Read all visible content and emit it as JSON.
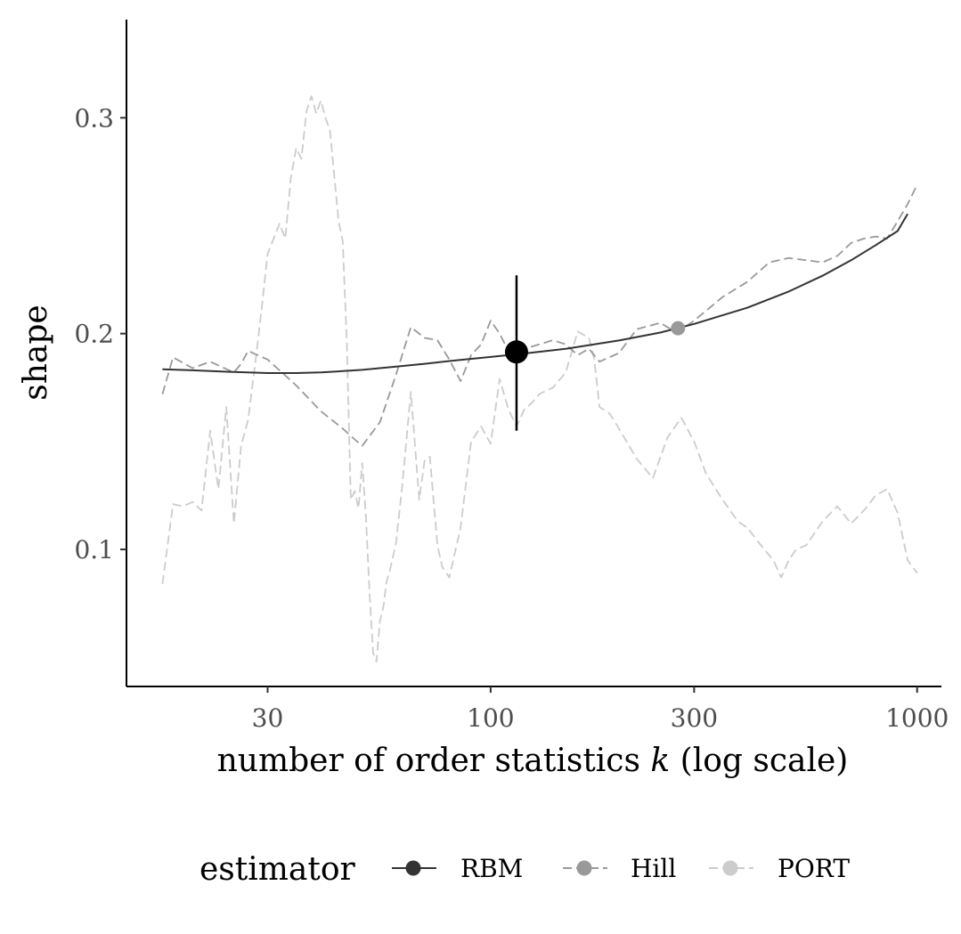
{
  "chart_data": {
    "type": "line",
    "xlabel_prefix": "number of order statistics",
    "xlabel_var": "k",
    "xlabel_suffix": "(log scale)",
    "ylabel": "shape",
    "x_scale": "log",
    "xlim": [
      14,
      1140
    ],
    "ylim": [
      0.0365,
      0.3455
    ],
    "x_ticks": [
      30,
      100,
      300,
      1000
    ],
    "x_tick_labels": [
      "30",
      "100",
      "300",
      "1000"
    ],
    "y_ticks": [
      0.1,
      0.2,
      0.3
    ],
    "y_tick_labels": [
      "0.1",
      "0.2",
      "0.3"
    ],
    "grid": false,
    "legend_position": "bottom",
    "legend_title": "estimator",
    "series": [
      {
        "name": "RBM",
        "color": "#333333",
        "linetype": "solid",
        "x": [
          17,
          20,
          25,
          30,
          35,
          40,
          50,
          60,
          70,
          80,
          100,
          120,
          150,
          200,
          250,
          300,
          400,
          500,
          600,
          700,
          800,
          900,
          950
        ],
        "y": [
          0.1835,
          0.183,
          0.1822,
          0.1817,
          0.1817,
          0.182,
          0.1832,
          0.1847,
          0.186,
          0.1873,
          0.1892,
          0.1908,
          0.193,
          0.1968,
          0.2005,
          0.2045,
          0.212,
          0.2195,
          0.2268,
          0.234,
          0.241,
          0.2475,
          0.2555
        ]
      },
      {
        "name": "Hill",
        "color": "#999999",
        "linetype": "dashed",
        "x": [
          17,
          18,
          20,
          22,
          25,
          26,
          27,
          30,
          35,
          40,
          45,
          48,
          50,
          55,
          60,
          65,
          70,
          75,
          80,
          85,
          90,
          95,
          100,
          105,
          110,
          120,
          130,
          140,
          150,
          160,
          170,
          180,
          200,
          220,
          250,
          270,
          290,
          300,
          350,
          400,
          450,
          500,
          550,
          600,
          650,
          700,
          750,
          800,
          850,
          900,
          950,
          1000
        ],
        "y": [
          0.172,
          0.189,
          0.184,
          0.187,
          0.182,
          0.186,
          0.192,
          0.188,
          0.176,
          0.164,
          0.156,
          0.151,
          0.148,
          0.159,
          0.181,
          0.203,
          0.198,
          0.197,
          0.188,
          0.178,
          0.19,
          0.195,
          0.206,
          0.2,
          0.192,
          0.193,
          0.195,
          0.197,
          0.195,
          0.19,
          0.193,
          0.187,
          0.191,
          0.202,
          0.205,
          0.201,
          0.204,
          0.206,
          0.217,
          0.224,
          0.233,
          0.235,
          0.234,
          0.233,
          0.236,
          0.242,
          0.244,
          0.245,
          0.244,
          0.252,
          0.26,
          0.269
        ]
      },
      {
        "name": "PORT",
        "color": "#cccccc",
        "linetype": "dashed",
        "x": [
          17,
          18,
          19,
          20,
          21,
          22,
          23,
          24,
          25,
          26,
          27,
          28,
          29,
          30,
          32,
          33,
          34,
          35,
          36,
          37,
          38,
          39,
          40,
          41,
          42,
          44,
          45,
          46,
          47,
          48,
          49,
          50,
          51,
          52,
          53,
          54,
          55,
          56,
          57,
          58,
          60,
          62,
          65,
          68,
          70,
          72,
          75,
          77,
          80,
          85,
          90,
          95,
          100,
          105,
          110,
          115,
          120,
          125,
          130,
          140,
          150,
          160,
          170,
          175,
          180,
          190,
          200,
          220,
          240,
          260,
          280,
          300,
          320,
          350,
          380,
          400,
          430,
          460,
          480,
          500,
          520,
          550,
          600,
          650,
          700,
          750,
          800,
          850,
          900,
          950,
          1000
        ],
        "y": [
          0.084,
          0.121,
          0.12,
          0.122,
          0.118,
          0.155,
          0.128,
          0.166,
          0.112,
          0.148,
          0.16,
          0.185,
          0.21,
          0.237,
          0.251,
          0.244,
          0.272,
          0.286,
          0.281,
          0.303,
          0.31,
          0.302,
          0.308,
          0.3,
          0.294,
          0.252,
          0.243,
          0.196,
          0.123,
          0.127,
          0.119,
          0.14,
          0.115,
          0.08,
          0.052,
          0.048,
          0.067,
          0.073,
          0.085,
          0.09,
          0.103,
          0.129,
          0.173,
          0.123,
          0.141,
          0.143,
          0.102,
          0.092,
          0.087,
          0.11,
          0.15,
          0.157,
          0.149,
          0.179,
          0.165,
          0.157,
          0.165,
          0.168,
          0.172,
          0.175,
          0.182,
          0.201,
          0.198,
          0.188,
          0.166,
          0.163,
          0.156,
          0.142,
          0.133,
          0.152,
          0.161,
          0.15,
          0.135,
          0.123,
          0.113,
          0.11,
          0.102,
          0.095,
          0.087,
          0.095,
          0.1,
          0.102,
          0.113,
          0.12,
          0.112,
          0.118,
          0.125,
          0.128,
          0.117,
          0.095,
          0.089
        ]
      }
    ],
    "points": [
      {
        "series": "RBM",
        "x": 115,
        "y": 0.1915,
        "ymin": 0.155,
        "ymax": 0.227,
        "color": "#000000"
      },
      {
        "series": "Hill",
        "x": 275,
        "y": 0.2025,
        "color": "#999999"
      }
    ]
  }
}
